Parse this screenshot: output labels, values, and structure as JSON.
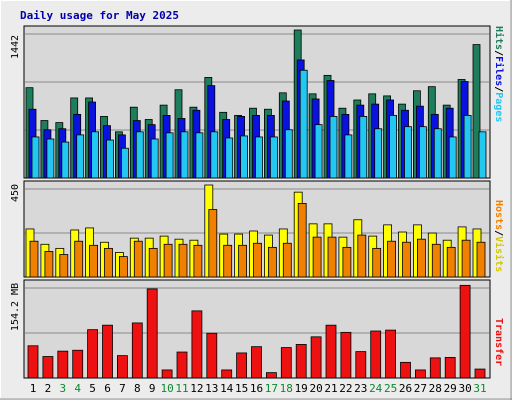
{
  "title": "Daily usage for May 2025",
  "colors": {
    "title": "#0000aa",
    "hits": "#1e7d5a",
    "files": "#0a12e0",
    "pages": "#22c8f2",
    "visits": "#ffff00",
    "hosts": "#f08000",
    "kbytes": "#ee1111",
    "weekend_day": "#0a8a30",
    "weekday": "#000000",
    "plot_bg": "#d8d8d8",
    "grid": "#8a8a8a"
  },
  "chart_data": [
    {
      "type": "bar",
      "panel": "hits",
      "categories": [
        "1",
        "2",
        "3",
        "4",
        "5",
        "6",
        "7",
        "8",
        "9",
        "10",
        "11",
        "12",
        "13",
        "14",
        "15",
        "16",
        "17",
        "18",
        "19",
        "20",
        "21",
        "22",
        "23",
        "24",
        "25",
        "26",
        "27",
        "28",
        "29",
        "30",
        "31"
      ],
      "series": [
        {
          "name": "Hits",
          "values": [
            880,
            560,
            540,
            780,
            780,
            600,
            450,
            690,
            570,
            710,
            860,
            690,
            980,
            640,
            610,
            680,
            670,
            830,
            1442,
            820,
            1000,
            680,
            760,
            820,
            800,
            720,
            850,
            890,
            710,
            960,
            1300
          ]
        },
        {
          "name": "Files",
          "values": [
            670,
            470,
            480,
            620,
            740,
            510,
            420,
            560,
            520,
            610,
            580,
            660,
            900,
            570,
            600,
            610,
            610,
            750,
            1150,
            770,
            950,
            620,
            710,
            720,
            760,
            660,
            700,
            620,
            680,
            940,
            0
          ]
        },
        {
          "name": "Pages",
          "values": [
            400,
            380,
            350,
            420,
            450,
            370,
            290,
            450,
            380,
            440,
            450,
            440,
            450,
            390,
            410,
            400,
            400,
            470,
            1050,
            520,
            600,
            420,
            600,
            480,
            610,
            500,
            500,
            480,
            400,
            610,
            450
          ]
        }
      ],
      "ylabel": "Hits/Files/Pages",
      "tick_label": "1442",
      "ylim": [
        0,
        1442
      ]
    },
    {
      "type": "bar",
      "panel": "visits",
      "categories": [
        "1",
        "2",
        "3",
        "4",
        "5",
        "6",
        "7",
        "8",
        "9",
        "10",
        "11",
        "12",
        "13",
        "14",
        "15",
        "16",
        "17",
        "18",
        "19",
        "20",
        "21",
        "22",
        "23",
        "24",
        "25",
        "26",
        "27",
        "28",
        "29",
        "30",
        "31"
      ],
      "series": [
        {
          "name": "Visits",
          "values": [
            235,
            160,
            140,
            230,
            240,
            170,
            120,
            190,
            190,
            200,
            185,
            180,
            450,
            210,
            210,
            225,
            205,
            235,
            415,
            260,
            260,
            195,
            280,
            200,
            255,
            220,
            255,
            215,
            180,
            245,
            235
          ]
        },
        {
          "name": "Hosts",
          "values": [
            175,
            125,
            110,
            175,
            155,
            140,
            100,
            175,
            140,
            160,
            160,
            155,
            330,
            155,
            155,
            165,
            145,
            165,
            360,
            195,
            195,
            145,
            205,
            140,
            175,
            170,
            185,
            160,
            145,
            180,
            170
          ]
        }
      ],
      "ylabel": "Hosts/Visits",
      "tick_label": "450",
      "ylim": [
        0,
        450
      ]
    },
    {
      "type": "bar",
      "panel": "transfer",
      "categories": [
        "1",
        "2",
        "3",
        "4",
        "5",
        "6",
        "7",
        "8",
        "9",
        "10",
        "11",
        "12",
        "13",
        "14",
        "15",
        "16",
        "17",
        "18",
        "19",
        "20",
        "21",
        "22",
        "23",
        "24",
        "25",
        "26",
        "27",
        "28",
        "29",
        "30",
        "31"
      ],
      "series": [
        {
          "name": "Transfer",
          "values": [
            72,
            48,
            60,
            62,
            108,
            118,
            50,
            123,
            199,
            18,
            58,
            150,
            100,
            18,
            56,
            70,
            12,
            68,
            75,
            92,
            118,
            102,
            59,
            105,
            107,
            35,
            18,
            45,
            46,
            207,
            20
          ]
        }
      ],
      "ylabel": "Transfer",
      "tick_label": "154.2 MB",
      "ylim": [
        0,
        210
      ]
    }
  ],
  "weekend_days": [
    3,
    4,
    10,
    11,
    17,
    18,
    24,
    25,
    31
  ]
}
